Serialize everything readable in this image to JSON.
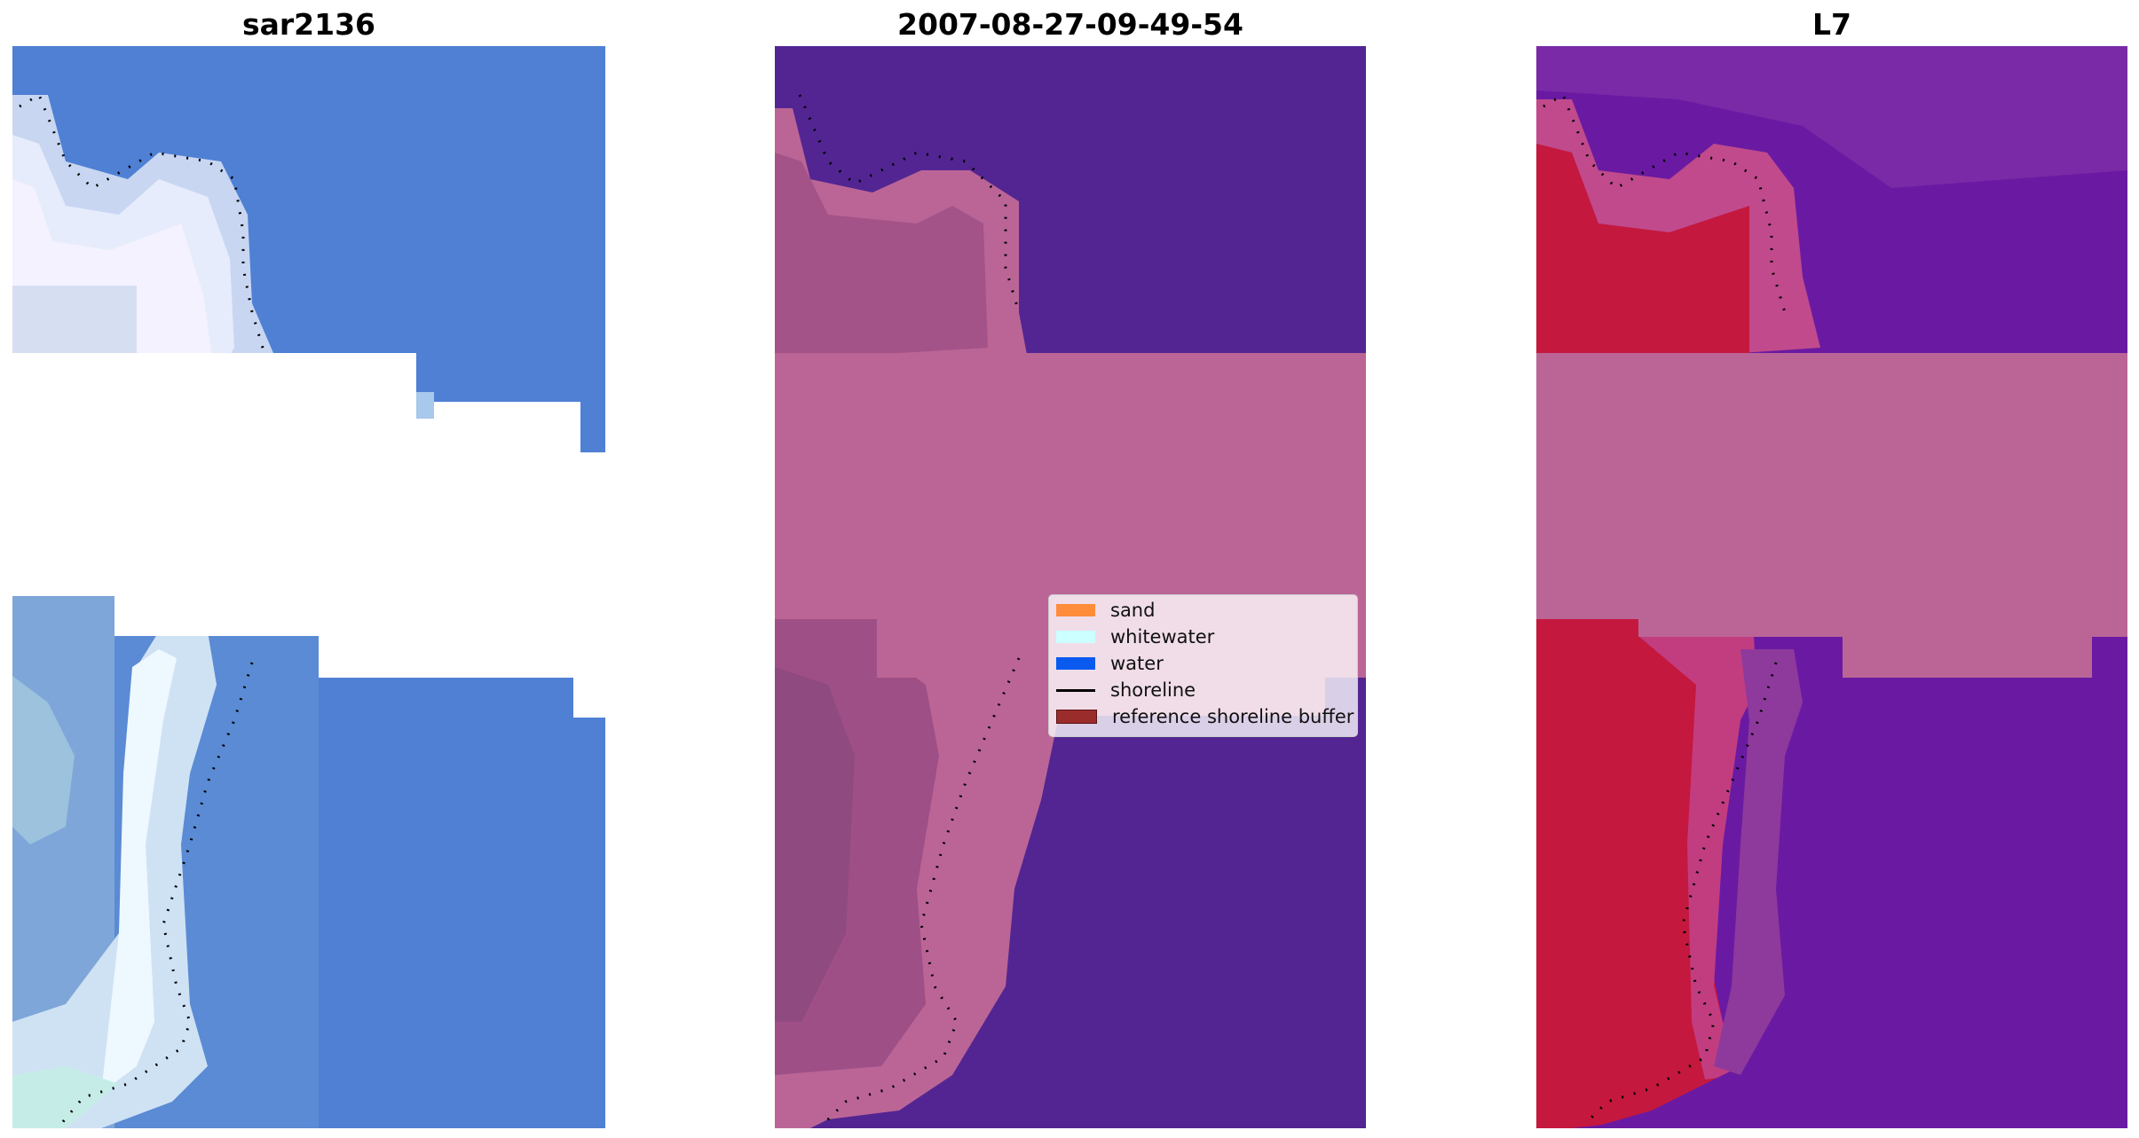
{
  "panels": [
    {
      "title": "sar2136"
    },
    {
      "title": "2007-08-27-09-49-54"
    },
    {
      "title": "L7"
    }
  ],
  "legend": [
    {
      "label": "sand",
      "color": "#ff8c3a",
      "kind": "patch"
    },
    {
      "label": "whitewater",
      "color": "#ccffff",
      "kind": "patch"
    },
    {
      "label": "water",
      "color": "#0a5af0",
      "kind": "patch"
    },
    {
      "label": "shoreline",
      "color": "#000000",
      "kind": "line"
    },
    {
      "label": "reference shoreline buffer",
      "color": "#9b2c2c",
      "kind": "patch"
    }
  ],
  "colors": {
    "sar_water": "#4f80d4",
    "class_water": "#522592",
    "buffer": "#bb6596",
    "sand_zone": "#b85b90",
    "l7_water": "#6a1aa2",
    "l7_land": "#c4183f"
  }
}
